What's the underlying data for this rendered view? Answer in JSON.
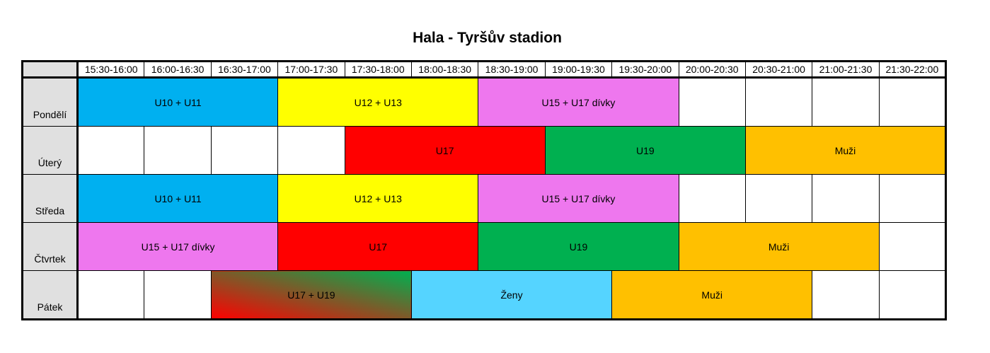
{
  "header": {
    "title": "Hala - Tyršův stadion"
  },
  "table": {
    "times": [
      "15:30-16:00",
      "16:00-16:30",
      "16:30-17:00",
      "17:00-17:30",
      "17:30-18:00",
      "18:00-18:30",
      "18:30-19:00",
      "19:00-19:30",
      "19:30-20:00",
      "20:00-20:30",
      "20:30-21:00",
      "21:00-21:30",
      "21:30-22:00"
    ],
    "rows": [
      {
        "day": "Pondělí",
        "cells": [
          {
            "label": "U10 + U11",
            "span": 3,
            "color": "#00b0f0"
          },
          {
            "label": "U12 + U13",
            "span": 3,
            "color": "#ffff00"
          },
          {
            "label": "U15 + U17 dívky",
            "span": 3,
            "color": "#ee77ee"
          },
          null,
          null,
          null,
          null
        ]
      },
      {
        "day": "Úterý",
        "cells": [
          null,
          null,
          null,
          null,
          {
            "label": "U17",
            "span": 3,
            "color": "#ff0000"
          },
          {
            "label": "U19",
            "span": 3,
            "color": "#00b050"
          },
          {
            "label": "Muži",
            "span": 3,
            "color": "#ffc000"
          }
        ]
      },
      {
        "day": "Středa",
        "cells": [
          {
            "label": "U10 + U11",
            "span": 3,
            "color": "#00b0f0"
          },
          {
            "label": "U12 + U13",
            "span": 3,
            "color": "#ffff00"
          },
          {
            "label": "U15 + U17 dívky",
            "span": 3,
            "color": "#ee77ee"
          },
          null,
          null,
          null,
          null
        ]
      },
      {
        "day": "Čtvrtek",
        "cells": [
          {
            "label": "U15 + U17 dívky",
            "span": 3,
            "color": "#ee77ee"
          },
          {
            "label": "U17",
            "span": 3,
            "color": "#ff0000"
          },
          {
            "label": "U19",
            "span": 3,
            "color": "#00b050"
          },
          {
            "label": "Muži",
            "span": 3,
            "color": "#ffc000"
          },
          null
        ]
      },
      {
        "day": "Pátek",
        "cells": [
          null,
          null,
          {
            "label": "U17 + U19",
            "span": 3,
            "color": [
              "#ff0000",
              "#00b050"
            ]
          },
          {
            "label": "Ženy",
            "span": 3,
            "color": "#55d4ff"
          },
          {
            "label": "Muži",
            "span": 3,
            "color": "#ffc000"
          },
          null,
          null
        ]
      }
    ]
  }
}
